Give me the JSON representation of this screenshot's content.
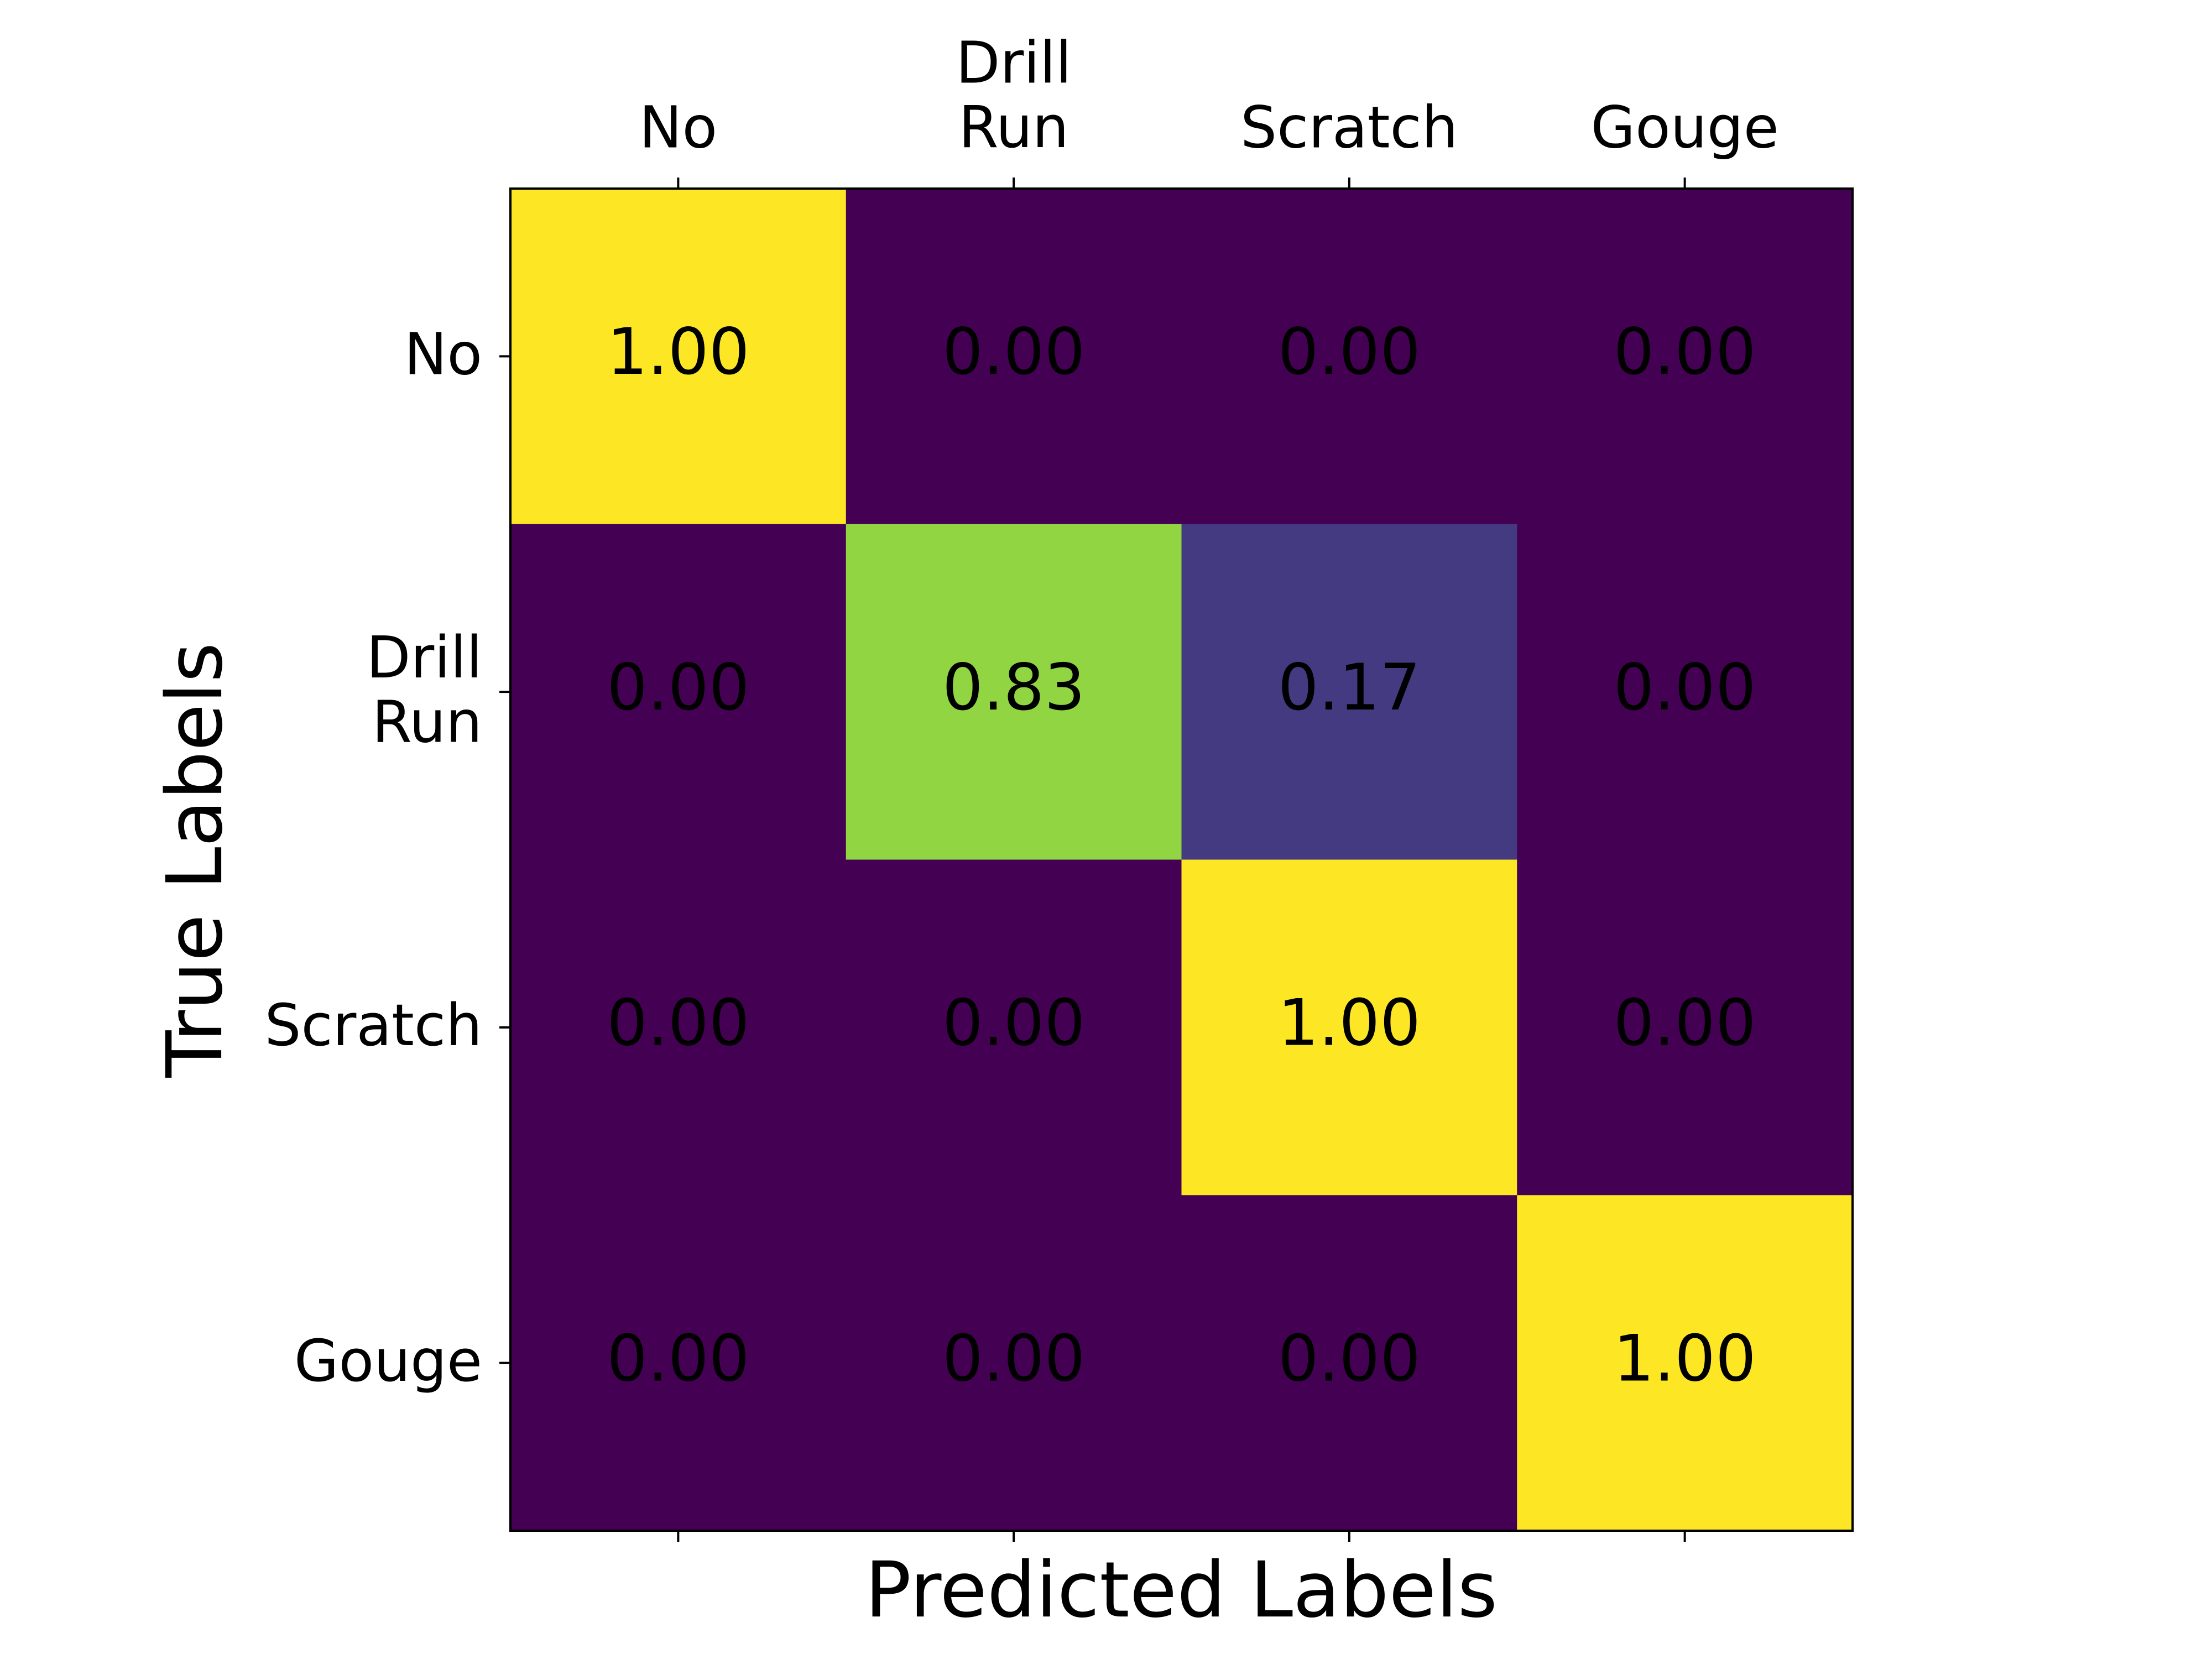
{
  "chart_data": {
    "type": "heatmap",
    "colormap": "viridis",
    "xlabel": "Predicted Labels",
    "ylabel": "True Labels",
    "x_categories": [
      "No",
      "Drill\nRun",
      "Scratch",
      "Gouge"
    ],
    "y_categories": [
      "No",
      "Drill\nRun",
      "Scratch",
      "Gouge"
    ],
    "values": [
      [
        1.0,
        0.0,
        0.0,
        0.0
      ],
      [
        0.0,
        0.83,
        0.17,
        0.0
      ],
      [
        0.0,
        0.0,
        1.0,
        0.0
      ],
      [
        0.0,
        0.0,
        0.0,
        1.0
      ]
    ],
    "value_labels": [
      [
        "1.00",
        "0.00",
        "0.00",
        "0.00"
      ],
      [
        "0.00",
        "0.83",
        "0.17",
        "0.00"
      ],
      [
        "0.00",
        "0.00",
        "1.00",
        "0.00"
      ],
      [
        "0.00",
        "0.00",
        "0.00",
        "1.00"
      ]
    ]
  }
}
